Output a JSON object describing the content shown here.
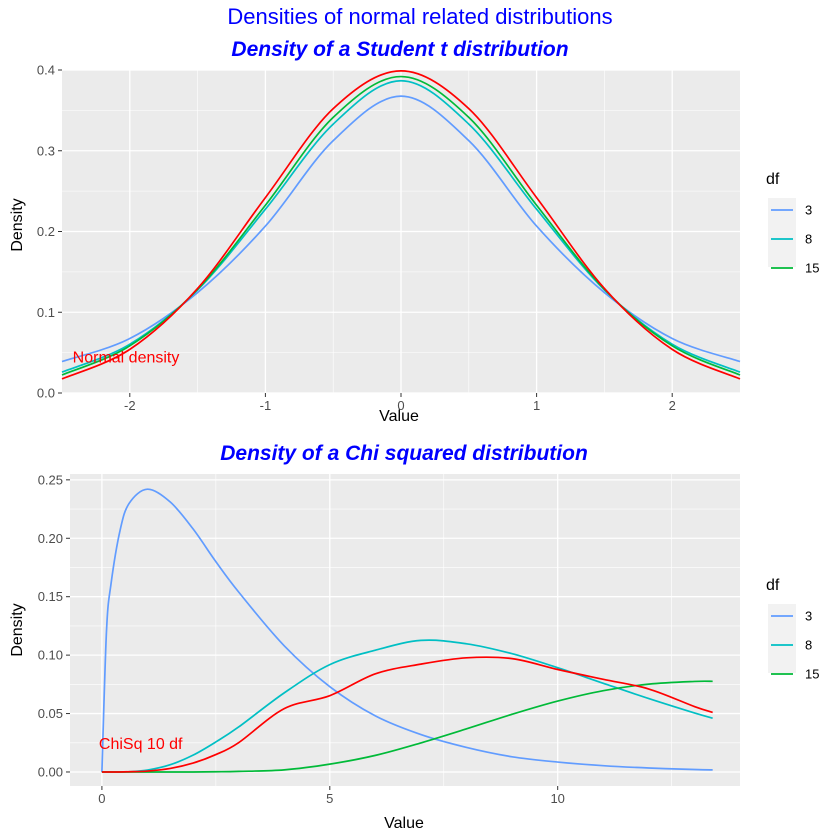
{
  "suptitle": "Densities of normal related distributions",
  "colors": {
    "panel_bg": "#EBEBEB",
    "grid_major": "#FFFFFF",
    "df3": "#619CFF",
    "df8": "#00BFC4",
    "df15": "#00BA38",
    "reference": "#FF0000",
    "title": "#0000FF"
  },
  "chart_data": [
    {
      "type": "line",
      "title": "Density of a Student t distribution",
      "xlabel": "Value",
      "ylabel": "Density",
      "xlim": [
        -2.5,
        2.5
      ],
      "ylim": [
        0,
        0.4
      ],
      "x_ticks": [
        -2,
        -1,
        0,
        1,
        2
      ],
      "x_tick_labels": [
        "-2",
        "-1",
        "0",
        "1",
        "2"
      ],
      "y_ticks": [
        0,
        0.1,
        0.2,
        0.3,
        0.4
      ],
      "y_tick_labels": [
        "0.0",
        "0.1",
        "0.2",
        "0.3",
        "0.4"
      ],
      "grid": true,
      "legend": {
        "title": "df",
        "placement": "right",
        "entries": [
          "3",
          "8",
          "15"
        ]
      },
      "x": [
        -2.5,
        -2.0,
        -1.5,
        -1.0,
        -0.5,
        0.0,
        0.5,
        1.0,
        1.5,
        2.0,
        2.5
      ],
      "series": [
        {
          "name": "3",
          "color": "#619CFF",
          "values": [
            0.039,
            0.0675,
            0.1244,
            0.2067,
            0.3125,
            0.3676,
            0.3125,
            0.2067,
            0.1244,
            0.0675,
            0.039
          ]
        },
        {
          "name": "8",
          "color": "#00BFC4",
          "values": [
            0.0259,
            0.0604,
            0.1276,
            0.2276,
            0.333,
            0.3867,
            0.333,
            0.2276,
            0.1276,
            0.0604,
            0.0259
          ]
        },
        {
          "name": "15",
          "color": "#00BA38",
          "values": [
            0.0223,
            0.0584,
            0.1284,
            0.2325,
            0.3413,
            0.3919,
            0.3413,
            0.2325,
            0.1284,
            0.0584,
            0.0223
          ]
        },
        {
          "color": "#FF0000",
          "values": [
            0.0175,
            0.054,
            0.1295,
            0.242,
            0.3521,
            0.3989,
            0.3521,
            0.242,
            0.1295,
            0.054,
            0.0175
          ]
        }
      ],
      "annotation": {
        "text": "Normal density",
        "x": -2.2,
        "y": 0.045
      }
    },
    {
      "type": "line",
      "title": "Density of a Chi squared distribution",
      "xlabel": "Value",
      "ylabel": "Density",
      "xlim": [
        -0.7,
        14.0
      ],
      "ylim": [
        -0.012,
        0.255
      ],
      "x_ticks": [
        0,
        5,
        10
      ],
      "x_tick_labels": [
        "0",
        "5",
        "10"
      ],
      "y_ticks": [
        0,
        0.05,
        0.1,
        0.15,
        0.2,
        0.25
      ],
      "y_tick_labels": [
        "0.00",
        "0.05",
        "0.10",
        "0.15",
        "0.20",
        "0.25"
      ],
      "grid": true,
      "legend": {
        "title": "df",
        "placement": "right",
        "entries": [
          "3",
          "8",
          "15"
        ]
      },
      "x": [
        0,
        0.1,
        0.2,
        0.4,
        0.6,
        1.0,
        1.5,
        2,
        2.5,
        3,
        4,
        5,
        6,
        7,
        8,
        9,
        10,
        11,
        12,
        13,
        13.4
      ],
      "series": [
        {
          "name": "3",
          "color": "#619CFF",
          "values": [
            0,
            0.12,
            0.161,
            0.207,
            0.23,
            0.242,
            0.231,
            0.208,
            0.18,
            0.154,
            0.108,
            0.073,
            0.048,
            0.032,
            0.021,
            0.013,
            0.0085,
            0.0054,
            0.0034,
            0.0021,
            0.0018
          ]
        },
        {
          "name": "8",
          "color": "#00BFC4",
          "values": [
            0,
            0.0,
            0.0,
            0.0,
            0.0002,
            0.0016,
            0.0062,
            0.0144,
            0.0257,
            0.0385,
            0.0677,
            0.0919,
            0.1042,
            0.1126,
            0.1097,
            0.1012,
            0.0892,
            0.0759,
            0.0628,
            0.0505,
            0.046
          ]
        },
        {
          "name": "15",
          "color": "#00BA38",
          "values": [
            0,
            0.0,
            0.0,
            0.0,
            0.0,
            0.0,
            0.0,
            0.0,
            0.0002,
            0.0005,
            0.0018,
            0.0067,
            0.0142,
            0.0249,
            0.0369,
            0.0494,
            0.0607,
            0.0696,
            0.0752,
            0.0775,
            0.0776
          ]
        },
        {
          "color": "#FF0000",
          "values": [
            0,
            0.0,
            0.0,
            0.0,
            0.0002,
            0.0008,
            0.003,
            0.0076,
            0.0149,
            0.0251,
            0.0542,
            0.0653,
            0.084,
            0.0923,
            0.0977,
            0.097,
            0.0877,
            0.0793,
            0.071,
            0.056,
            0.051
          ]
        }
      ],
      "annotation": {
        "text": "ChiSq 10 df",
        "x": 0.0,
        "y": 0.025
      }
    }
  ]
}
